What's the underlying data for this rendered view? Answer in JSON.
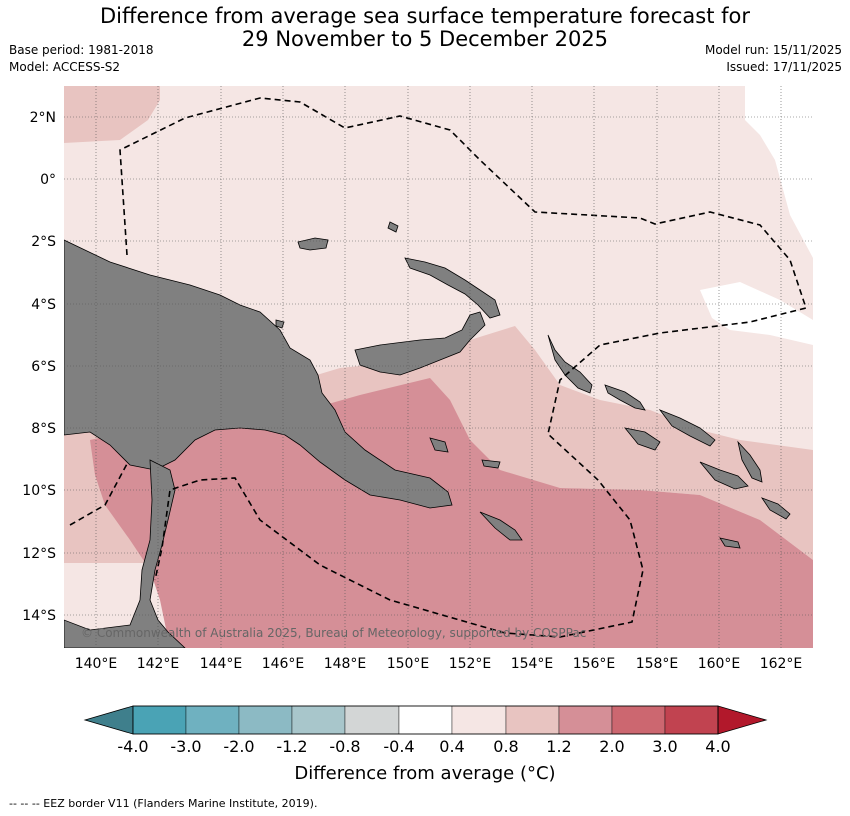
{
  "title": {
    "line1": "Difference from average sea surface temperature forecast for",
    "line2": "29 November to 5 December 2025"
  },
  "meta_left": {
    "base_period": "Base period: 1981-2018",
    "model": "Model: ACCESS-S2"
  },
  "meta_right": {
    "model_run": "Model run: 15/11/2025",
    "issued": "Issued: 17/11/2025"
  },
  "map": {
    "lat_labels": [
      "2°N",
      "0°",
      "2°S",
      "4°S",
      "6°S",
      "8°S",
      "10°S",
      "12°S",
      "14°S"
    ],
    "lon_labels": [
      "140°E",
      "142°E",
      "144°E",
      "146°E",
      "148°E",
      "150°E",
      "152°E",
      "154°E",
      "156°E",
      "158°E",
      "160°E",
      "162°E"
    ],
    "copyright": "© Commonwealth of Australia 2025, Bureau of Meteorology, supported by COSPPac"
  },
  "colorbar": {
    "colors": [
      "#3f7f8c",
      "#4aa3b5",
      "#6fb1c0",
      "#8cbac4",
      "#a8c6cb",
      "#d3d6d6",
      "#ffffff",
      "#f5e6e4",
      "#e8c4c1",
      "#d58f97",
      "#cc6770",
      "#c14350",
      "#b2182b"
    ],
    "ticks": [
      "-4.0",
      "-3.0",
      "-2.0",
      "-1.2",
      "-0.8",
      "-0.4",
      "0.4",
      "0.8",
      "1.2",
      "2.0",
      "3.0",
      "4.0"
    ],
    "label": "Difference from average (°C)"
  },
  "colors": {
    "land": "#808080",
    "anom_04_08": "#f5e6e4",
    "anom_08_12": "#e8c4c1",
    "anom_12_20": "#d58f97",
    "neutral": "#ffffff"
  },
  "footnote": "-- -- -- EEZ border V11 (Flanders Marine Institute, 2019)."
}
